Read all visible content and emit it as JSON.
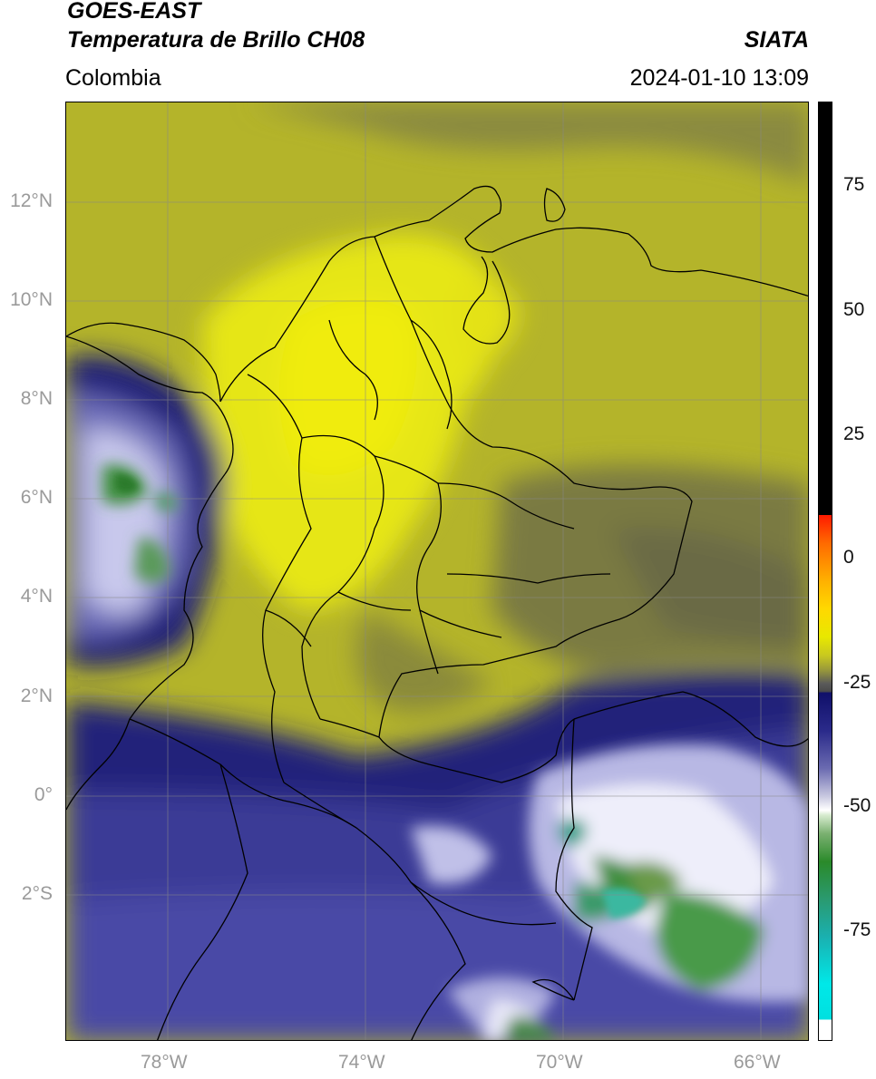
{
  "header": {
    "title_line1": "GOES-EAST",
    "title_line2": "Temperatura de Brillo CH08",
    "region": "Colombia",
    "brand": "SIATA",
    "datetime": "2024-01-10 13:09"
  },
  "map": {
    "lat_ticks": [
      "12°N",
      "10°N",
      "8°N",
      "6°N",
      "4°N",
      "2°N",
      "0°",
      "2°S"
    ],
    "lon_ticks": [
      "78°W",
      "74°W",
      "70°W",
      "66°W"
    ],
    "colors": {
      "warm_yellow": "#e6e60a",
      "olive": "#b8b82a",
      "dark_olive": "#6e6e3c",
      "navy": "#1a1a78",
      "blue": "#4a4aa0",
      "white_cloud": "#f0f0f8",
      "green_cloud": "#4a9a4a",
      "teal_cloud": "#3ab8a0"
    }
  },
  "colorbar": {
    "ticks": [
      "75",
      "50",
      "25",
      "0",
      "-25",
      "-50",
      "-75"
    ],
    "scale": [
      {
        "value": 89,
        "color": "#000000"
      },
      {
        "value": 8,
        "color": "#ff1a00"
      },
      {
        "value": -10,
        "color": "#ffd800"
      },
      {
        "value": -25,
        "color": "#4a4a4a"
      },
      {
        "value": -27,
        "color": "#10106a"
      },
      {
        "value": -50,
        "color": "#ffffff"
      },
      {
        "value": -60,
        "color": "#2a8a2a"
      },
      {
        "value": -90,
        "color": "#00e0e0"
      },
      {
        "value": -95,
        "color": "#ffffff"
      }
    ]
  }
}
